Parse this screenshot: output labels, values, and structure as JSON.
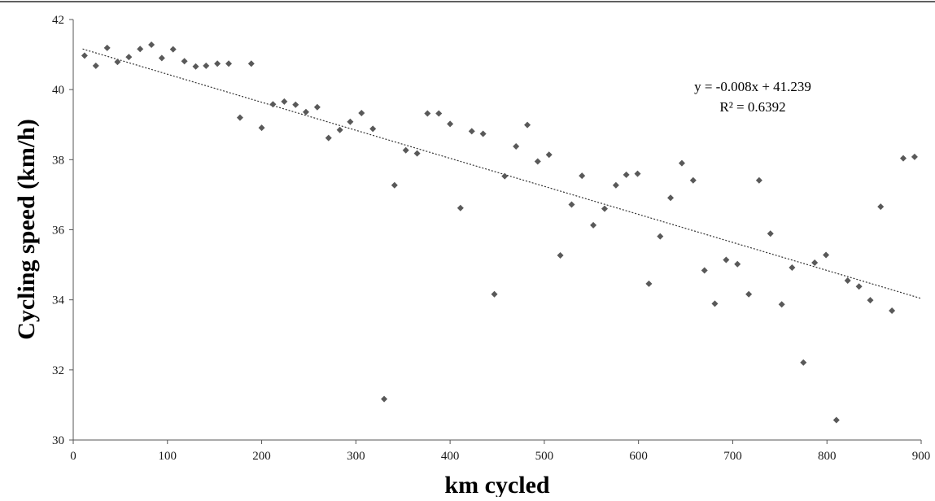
{
  "chart_data": {
    "type": "scatter",
    "xlabel": "km cycled",
    "ylabel": "Cycling speed (km/h)",
    "xlim": [
      0,
      900
    ],
    "ylim": [
      30,
      42
    ],
    "x_ticks": [
      0,
      100,
      200,
      300,
      400,
      500,
      600,
      700,
      800,
      900
    ],
    "y_ticks": [
      30,
      32,
      34,
      36,
      38,
      40,
      42
    ],
    "grid": false,
    "marker_color": "#595959",
    "trendline_color": "#333333",
    "trendline": {
      "slope": -0.008,
      "intercept": 41.239,
      "equation": "y = -0.008x + 41.239",
      "r_squared": "R² = 0.6392"
    },
    "points": [
      {
        "x": 12,
        "y": 40.97
      },
      {
        "x": 24,
        "y": 40.68
      },
      {
        "x": 36,
        "y": 41.19
      },
      {
        "x": 47,
        "y": 40.79
      },
      {
        "x": 59,
        "y": 40.93
      },
      {
        "x": 71,
        "y": 41.16
      },
      {
        "x": 83,
        "y": 41.28
      },
      {
        "x": 94,
        "y": 40.9
      },
      {
        "x": 106,
        "y": 41.15
      },
      {
        "x": 118,
        "y": 40.81
      },
      {
        "x": 130,
        "y": 40.66
      },
      {
        "x": 141,
        "y": 40.68
      },
      {
        "x": 153,
        "y": 40.74
      },
      {
        "x": 165,
        "y": 40.74
      },
      {
        "x": 177,
        "y": 39.2
      },
      {
        "x": 189,
        "y": 40.74
      },
      {
        "x": 200,
        "y": 38.91
      },
      {
        "x": 212,
        "y": 39.58
      },
      {
        "x": 224,
        "y": 39.66
      },
      {
        "x": 236,
        "y": 39.57
      },
      {
        "x": 247,
        "y": 39.36
      },
      {
        "x": 259,
        "y": 39.5
      },
      {
        "x": 271,
        "y": 38.62
      },
      {
        "x": 283,
        "y": 38.85
      },
      {
        "x": 294,
        "y": 39.08
      },
      {
        "x": 306,
        "y": 39.33
      },
      {
        "x": 318,
        "y": 38.88
      },
      {
        "x": 330,
        "y": 31.17
      },
      {
        "x": 341,
        "y": 37.27
      },
      {
        "x": 353,
        "y": 38.27
      },
      {
        "x": 365,
        "y": 38.18
      },
      {
        "x": 376,
        "y": 39.32
      },
      {
        "x": 388,
        "y": 39.32
      },
      {
        "x": 400,
        "y": 39.02
      },
      {
        "x": 411,
        "y": 36.62
      },
      {
        "x": 423,
        "y": 38.81
      },
      {
        "x": 435,
        "y": 38.74
      },
      {
        "x": 447,
        "y": 34.16
      },
      {
        "x": 458,
        "y": 37.53
      },
      {
        "x": 470,
        "y": 38.38
      },
      {
        "x": 482,
        "y": 38.99
      },
      {
        "x": 493,
        "y": 37.95
      },
      {
        "x": 505,
        "y": 38.14
      },
      {
        "x": 517,
        "y": 35.27
      },
      {
        "x": 529,
        "y": 36.72
      },
      {
        "x": 540,
        "y": 37.54
      },
      {
        "x": 552,
        "y": 36.13
      },
      {
        "x": 564,
        "y": 36.6
      },
      {
        "x": 576,
        "y": 37.27
      },
      {
        "x": 587,
        "y": 37.57
      },
      {
        "x": 599,
        "y": 37.6
      },
      {
        "x": 611,
        "y": 34.46
      },
      {
        "x": 623,
        "y": 35.81
      },
      {
        "x": 634,
        "y": 36.91
      },
      {
        "x": 646,
        "y": 37.9
      },
      {
        "x": 658,
        "y": 37.41
      },
      {
        "x": 670,
        "y": 34.84
      },
      {
        "x": 681,
        "y": 33.89
      },
      {
        "x": 693,
        "y": 35.14
      },
      {
        "x": 705,
        "y": 35.02
      },
      {
        "x": 717,
        "y": 34.16
      },
      {
        "x": 728,
        "y": 37.41
      },
      {
        "x": 740,
        "y": 35.89
      },
      {
        "x": 752,
        "y": 33.87
      },
      {
        "x": 763,
        "y": 34.92
      },
      {
        "x": 775,
        "y": 32.21
      },
      {
        "x": 787,
        "y": 35.06
      },
      {
        "x": 799,
        "y": 35.28
      },
      {
        "x": 810,
        "y": 30.57
      },
      {
        "x": 822,
        "y": 34.55
      },
      {
        "x": 834,
        "y": 34.38
      },
      {
        "x": 846,
        "y": 33.99
      },
      {
        "x": 857,
        "y": 36.66
      },
      {
        "x": 869,
        "y": 33.69
      },
      {
        "x": 881,
        "y": 38.04
      },
      {
        "x": 893,
        "y": 38.08
      }
    ]
  }
}
